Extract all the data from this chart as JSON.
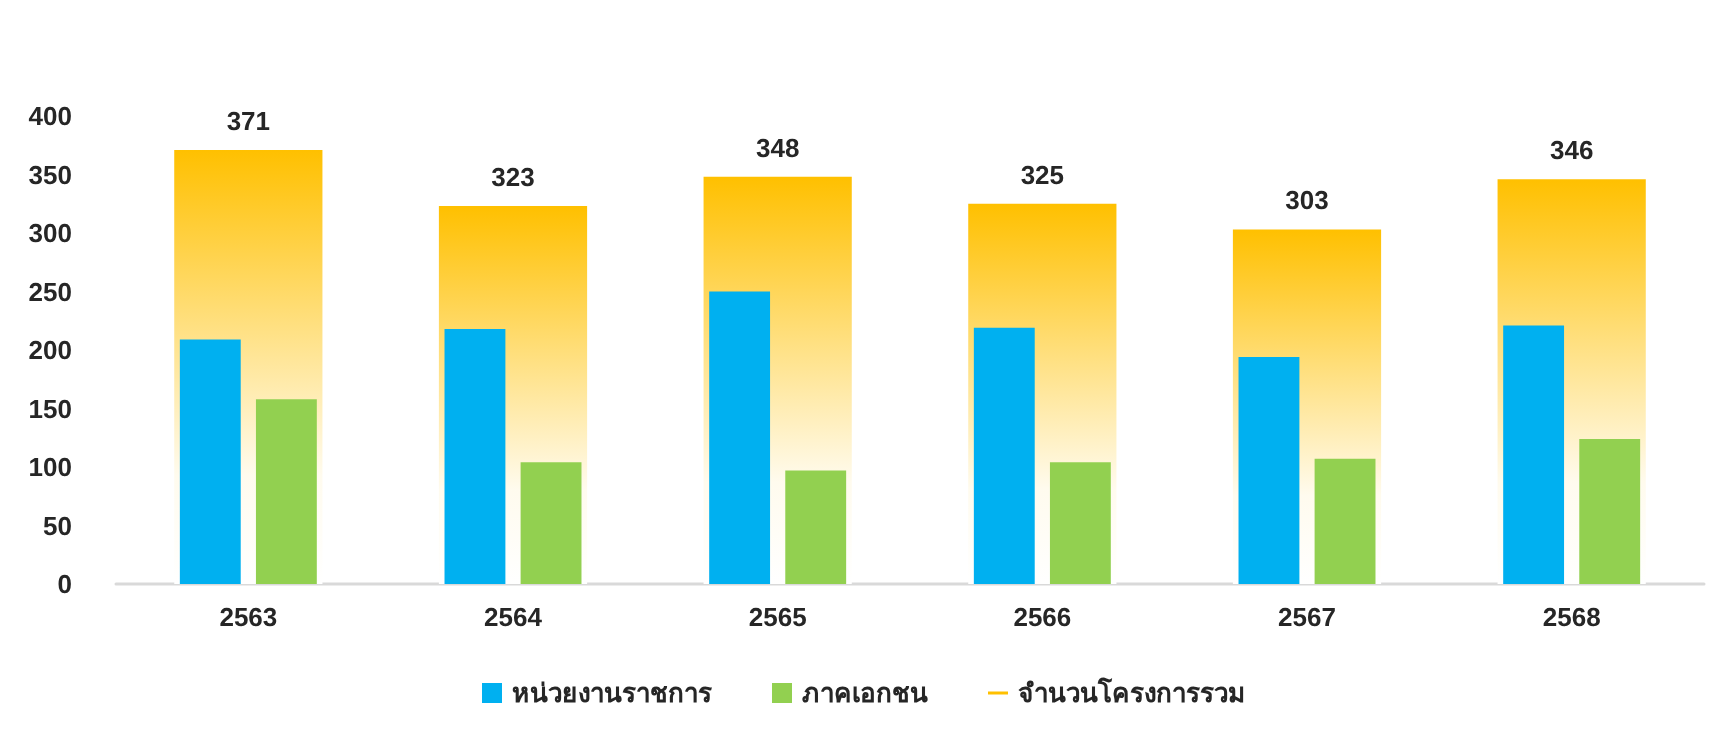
{
  "chart_data": {
    "type": "bar",
    "categories": [
      "2563",
      "2564",
      "2565",
      "2566",
      "2567",
      "2568"
    ],
    "series": [
      {
        "name": "หน่วยงานราชการ",
        "color": "#00b0f0",
        "values": [
          209,
          218,
          250,
          219,
          194,
          221
        ]
      },
      {
        "name": "ภาคเอกชน",
        "color": "#92d050",
        "values": [
          158,
          104,
          97,
          104,
          107,
          124
        ]
      },
      {
        "name": "จำนวนโครงการรวม",
        "color": "#ffc000",
        "values": [
          371,
          323,
          348,
          325,
          303,
          346
        ],
        "value_labels": [
          "371",
          "323",
          "348",
          "325",
          "303",
          "346"
        ]
      }
    ],
    "ylim": [
      0,
      400
    ],
    "yticks": [
      0,
      50,
      100,
      150,
      200,
      250,
      300,
      350,
      400
    ],
    "grid": false,
    "legend": "bottom"
  }
}
